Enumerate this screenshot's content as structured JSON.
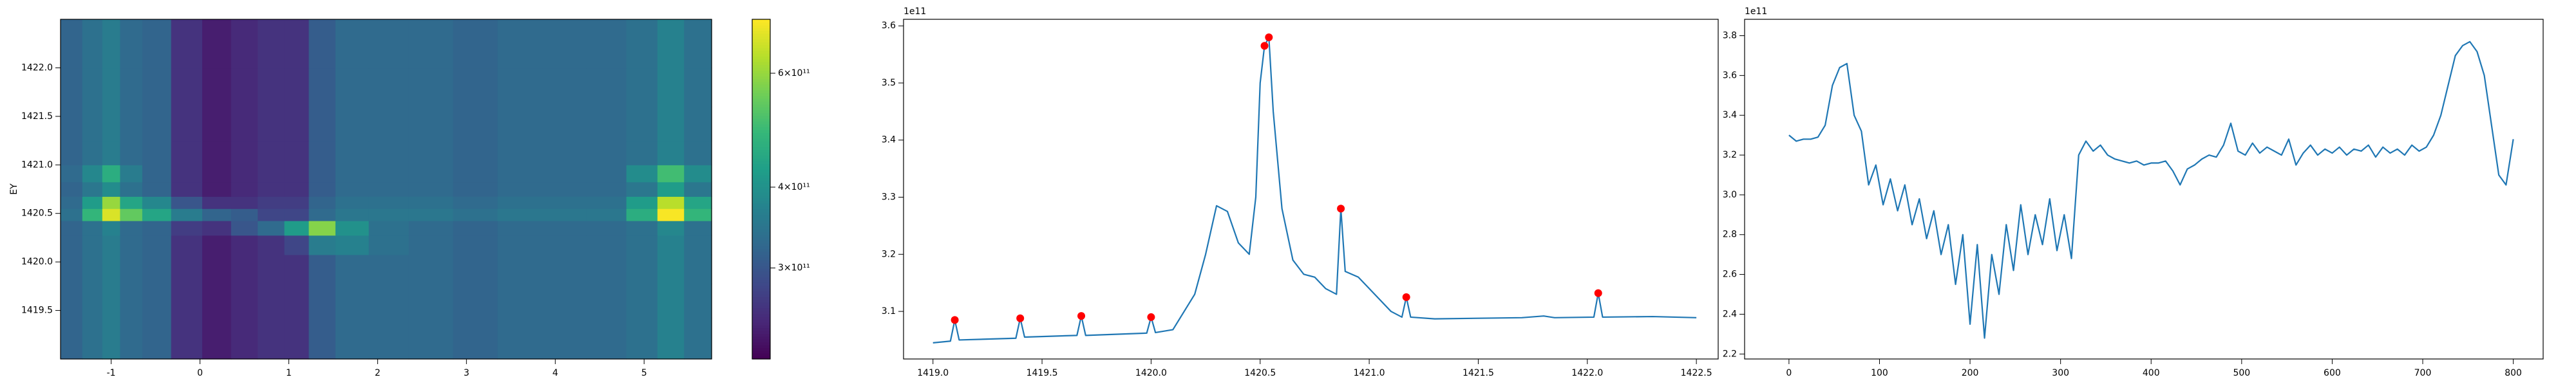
{
  "chart_data": [
    {
      "type": "heatmap",
      "ylabel": "EY",
      "x": [
        -1.45,
        -1.2,
        -1.0,
        -0.8,
        -0.5,
        -0.15,
        0.2,
        0.5,
        0.8,
        1.1,
        1.35,
        1.7,
        2.1,
        2.6,
        3.1,
        3.6,
        4.1,
        4.6,
        5.0,
        5.3,
        5.6
      ],
      "y": [
        1419.25,
        1419.6,
        1419.95,
        1420.2,
        1420.35,
        1420.5,
        1420.6,
        1420.75,
        1420.9,
        1421.1,
        1421.4,
        1421.8,
        1422.2
      ],
      "z": [
        [
          320000000000.0,
          340000000000.0,
          360000000000.0,
          330000000000.0,
          320000000000.0,
          260000000000.0,
          240000000000.0,
          250000000000.0,
          260000000000.0,
          260000000000.0,
          310000000000.0,
          330000000000.0,
          330000000000.0,
          330000000000.0,
          320000000000.0,
          330000000000.0,
          330000000000.0,
          330000000000.0,
          340000000000.0,
          370000000000.0,
          340000000000.0
        ],
        [
          320000000000.0,
          340000000000.0,
          360000000000.0,
          330000000000.0,
          320000000000.0,
          260000000000.0,
          240000000000.0,
          250000000000.0,
          260000000000.0,
          260000000000.0,
          310000000000.0,
          330000000000.0,
          330000000000.0,
          330000000000.0,
          320000000000.0,
          330000000000.0,
          330000000000.0,
          330000000000.0,
          340000000000.0,
          370000000000.0,
          340000000000.0
        ],
        [
          320000000000.0,
          340000000000.0,
          360000000000.0,
          330000000000.0,
          320000000000.0,
          260000000000.0,
          240000000000.0,
          250000000000.0,
          260000000000.0,
          260000000000.0,
          310000000000.0,
          330000000000.0,
          330000000000.0,
          330000000000.0,
          320000000000.0,
          330000000000.0,
          330000000000.0,
          330000000000.0,
          340000000000.0,
          370000000000.0,
          340000000000.0
        ],
        [
          320000000000.0,
          340000000000.0,
          360000000000.0,
          330000000000.0,
          320000000000.0,
          260000000000.0,
          240000000000.0,
          250000000000.0,
          260000000000.0,
          280000000000.0,
          360000000000.0,
          370000000000.0,
          340000000000.0,
          330000000000.0,
          320000000000.0,
          330000000000.0,
          330000000000.0,
          330000000000.0,
          340000000000.0,
          370000000000.0,
          340000000000.0
        ],
        [
          320000000000.0,
          340000000000.0,
          370000000000.0,
          330000000000.0,
          320000000000.0,
          270000000000.0,
          260000000000.0,
          300000000000.0,
          330000000000.0,
          420000000000.0,
          580000000000.0,
          400000000000.0,
          340000000000.0,
          330000000000.0,
          320000000000.0,
          330000000000.0,
          330000000000.0,
          330000000000.0,
          340000000000.0,
          380000000000.0,
          340000000000.0
        ],
        [
          340000000000.0,
          480000000000.0,
          680000000000.0,
          540000000000.0,
          440000000000.0,
          360000000000.0,
          320000000000.0,
          310000000000.0,
          280000000000.0,
          280000000000.0,
          330000000000.0,
          350000000000.0,
          350000000000.0,
          350000000000.0,
          340000000000.0,
          350000000000.0,
          350000000000.0,
          350000000000.0,
          460000000000.0,
          720000000000.0,
          480000000000.0
        ],
        [
          330000000000.0,
          420000000000.0,
          600000000000.0,
          440000000000.0,
          380000000000.0,
          300000000000.0,
          260000000000.0,
          260000000000.0,
          270000000000.0,
          270000000000.0,
          320000000000.0,
          340000000000.0,
          340000000000.0,
          340000000000.0,
          330000000000.0,
          340000000000.0,
          340000000000.0,
          340000000000.0,
          420000000000.0,
          640000000000.0,
          440000000000.0
        ],
        [
          320000000000.0,
          350000000000.0,
          390000000000.0,
          340000000000.0,
          320000000000.0,
          260000000000.0,
          240000000000.0,
          250000000000.0,
          260000000000.0,
          260000000000.0,
          310000000000.0,
          330000000000.0,
          330000000000.0,
          330000000000.0,
          320000000000.0,
          330000000000.0,
          330000000000.0,
          330000000000.0,
          350000000000.0,
          420000000000.0,
          350000000000.0
        ],
        [
          330000000000.0,
          380000000000.0,
          460000000000.0,
          360000000000.0,
          320000000000.0,
          260000000000.0,
          240000000000.0,
          250000000000.0,
          260000000000.0,
          260000000000.0,
          310000000000.0,
          330000000000.0,
          330000000000.0,
          330000000000.0,
          320000000000.0,
          330000000000.0,
          330000000000.0,
          330000000000.0,
          390000000000.0,
          500000000000.0,
          390000000000.0
        ],
        [
          320000000000.0,
          340000000000.0,
          360000000000.0,
          330000000000.0,
          320000000000.0,
          260000000000.0,
          240000000000.0,
          250000000000.0,
          260000000000.0,
          260000000000.0,
          310000000000.0,
          330000000000.0,
          330000000000.0,
          330000000000.0,
          320000000000.0,
          330000000000.0,
          330000000000.0,
          330000000000.0,
          340000000000.0,
          370000000000.0,
          340000000000.0
        ],
        [
          320000000000.0,
          340000000000.0,
          360000000000.0,
          330000000000.0,
          320000000000.0,
          260000000000.0,
          240000000000.0,
          250000000000.0,
          260000000000.0,
          260000000000.0,
          310000000000.0,
          330000000000.0,
          330000000000.0,
          330000000000.0,
          320000000000.0,
          330000000000.0,
          330000000000.0,
          330000000000.0,
          340000000000.0,
          370000000000.0,
          340000000000.0
        ],
        [
          320000000000.0,
          340000000000.0,
          360000000000.0,
          330000000000.0,
          320000000000.0,
          260000000000.0,
          240000000000.0,
          250000000000.0,
          260000000000.0,
          260000000000.0,
          310000000000.0,
          330000000000.0,
          330000000000.0,
          330000000000.0,
          320000000000.0,
          330000000000.0,
          330000000000.0,
          330000000000.0,
          340000000000.0,
          370000000000.0,
          340000000000.0
        ],
        [
          320000000000.0,
          340000000000.0,
          360000000000.0,
          330000000000.0,
          320000000000.0,
          260000000000.0,
          240000000000.0,
          250000000000.0,
          260000000000.0,
          260000000000.0,
          310000000000.0,
          330000000000.0,
          330000000000.0,
          330000000000.0,
          320000000000.0,
          330000000000.0,
          330000000000.0,
          330000000000.0,
          340000000000.0,
          370000000000.0,
          340000000000.0
        ]
      ],
      "xlim": [
        -1.57,
        5.76
      ],
      "ylim": [
        1419.0,
        1422.5
      ],
      "xticks": [
        -1,
        0,
        1,
        2,
        3,
        4,
        5
      ],
      "yticks": [
        1419.5,
        {
          "value": 1420,
          "label": "1420.0"
        },
        1420.5,
        {
          "value": 1421,
          "label": "1421.0"
        },
        1421.5,
        {
          "value": 1422,
          "label": "1422.0"
        }
      ],
      "colorbar": {
        "colormap": "viridis",
        "scale": "log",
        "clim": [
          217000000000.0,
          727000000000.0
        ],
        "ticks": [
          {
            "value": 300000000000.0,
            "label": "3×10¹¹"
          },
          {
            "value": 400000000000.0,
            "label": "4×10¹¹"
          },
          {
            "value": 600000000000.0,
            "label": "6×10¹¹"
          }
        ]
      }
    },
    {
      "type": "line",
      "offset_label": "1e11",
      "xlim": [
        1418.865,
        1422.6
      ],
      "ylim": [
        3.0167,
        3.6115
      ],
      "xticks": [
        {
          "value": 1419,
          "label": "1419.0"
        },
        1419.5,
        {
          "value": 1420,
          "label": "1420.0"
        },
        1420.5,
        {
          "value": 1421,
          "label": "1421.0"
        },
        1421.5,
        {
          "value": 1422,
          "label": "1422.0"
        },
        1422.5
      ],
      "yticks": [
        3.1,
        3.2,
        3.3,
        3.4,
        3.5,
        3.6
      ],
      "series": [
        {
          "type": "line",
          "color": "#1f77b4",
          "x": [
            1419.0,
            1419.08,
            1419.1,
            1419.12,
            1419.38,
            1419.4,
            1419.42,
            1419.66,
            1419.68,
            1419.7,
            1419.98,
            1420.0,
            1420.02,
            1420.1,
            1420.2,
            1420.25,
            1420.3,
            1420.35,
            1420.4,
            1420.45,
            1420.48,
            1420.5,
            1420.52,
            1420.54,
            1420.56,
            1420.6,
            1420.65,
            1420.7,
            1420.75,
            1420.8,
            1420.85,
            1420.87,
            1420.89,
            1420.95,
            1421.0,
            1421.1,
            1421.15,
            1421.17,
            1421.19,
            1421.3,
            1421.5,
            1421.7,
            1421.8,
            1421.85,
            1422.03,
            1422.05,
            1422.07,
            1422.3,
            1422.5
          ],
          "values": [
            3.045,
            3.048,
            3.085,
            3.05,
            3.053,
            3.088,
            3.055,
            3.058,
            3.092,
            3.058,
            3.062,
            3.09,
            3.063,
            3.068,
            3.13,
            3.2,
            3.285,
            3.275,
            3.22,
            3.2,
            3.3,
            3.5,
            3.565,
            3.58,
            3.45,
            3.28,
            3.19,
            3.165,
            3.16,
            3.14,
            3.13,
            3.28,
            3.17,
            3.16,
            3.14,
            3.1,
            3.09,
            3.125,
            3.09,
            3.087,
            3.088,
            3.089,
            3.092,
            3.089,
            3.09,
            3.132,
            3.09,
            3.091,
            3.089
          ]
        },
        {
          "type": "scatter",
          "color": "#ff0000",
          "x": [
            1419.1,
            1419.4,
            1419.68,
            1420.0,
            1420.52,
            1420.54,
            1420.87,
            1421.17,
            1422.05
          ],
          "values": [
            3.085,
            3.088,
            3.092,
            3.09,
            3.565,
            3.58,
            3.28,
            3.125,
            3.132
          ]
        }
      ]
    },
    {
      "type": "line",
      "offset_label": "1e11",
      "xlim": [
        -49,
        833
      ],
      "ylim": [
        2.175,
        3.8825
      ],
      "xticks": [
        0,
        100,
        200,
        300,
        400,
        500,
        600,
        700,
        800
      ],
      "yticks": [
        2.2,
        2.4,
        2.6,
        2.8,
        {
          "value": 3,
          "label": "3.0"
        },
        3.2,
        3.4,
        3.6,
        3.8
      ],
      "series": [
        {
          "type": "line",
          "color": "#1f77b4",
          "x": [
            0,
            8,
            16,
            24,
            32,
            40,
            48,
            56,
            64,
            72,
            80,
            88,
            96,
            104,
            112,
            120,
            128,
            136,
            144,
            152,
            160,
            168,
            176,
            184,
            192,
            200,
            208,
            216,
            224,
            232,
            240,
            248,
            256,
            264,
            272,
            280,
            288,
            296,
            304,
            312,
            320,
            328,
            336,
            344,
            352,
            360,
            368,
            376,
            384,
            392,
            400,
            408,
            416,
            424,
            432,
            440,
            448,
            456,
            464,
            472,
            480,
            488,
            496,
            504,
            512,
            520,
            528,
            536,
            544,
            552,
            560,
            568,
            576,
            584,
            592,
            600,
            608,
            616,
            624,
            632,
            640,
            648,
            656,
            664,
            672,
            680,
            688,
            696,
            704,
            712,
            720,
            728,
            736,
            744,
            752,
            760,
            768,
            776,
            784,
            792,
            800
          ],
          "values": [
            3.3,
            3.27,
            3.28,
            3.28,
            3.29,
            3.35,
            3.55,
            3.64,
            3.66,
            3.4,
            3.32,
            3.05,
            3.15,
            2.95,
            3.08,
            2.92,
            3.05,
            2.85,
            2.98,
            2.78,
            2.92,
            2.7,
            2.85,
            2.55,
            2.8,
            2.35,
            2.75,
            2.28,
            2.7,
            2.5,
            2.85,
            2.62,
            2.95,
            2.7,
            2.9,
            2.75,
            2.98,
            2.72,
            2.9,
            2.68,
            3.2,
            3.27,
            3.22,
            3.25,
            3.2,
            3.18,
            3.17,
            3.16,
            3.17,
            3.15,
            3.16,
            3.16,
            3.17,
            3.12,
            3.05,
            3.13,
            3.15,
            3.18,
            3.2,
            3.19,
            3.25,
            3.36,
            3.22,
            3.2,
            3.26,
            3.21,
            3.24,
            3.22,
            3.2,
            3.28,
            3.15,
            3.21,
            3.25,
            3.2,
            3.23,
            3.21,
            3.24,
            3.2,
            3.23,
            3.22,
            3.25,
            3.19,
            3.24,
            3.21,
            3.23,
            3.2,
            3.25,
            3.22,
            3.24,
            3.3,
            3.4,
            3.55,
            3.7,
            3.75,
            3.77,
            3.72,
            3.6,
            3.35,
            3.1,
            3.05,
            3.28
          ]
        }
      ]
    }
  ]
}
